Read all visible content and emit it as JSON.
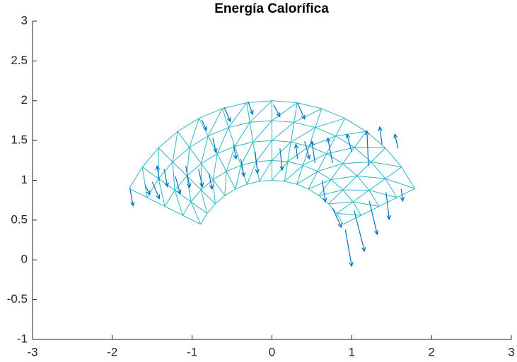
{
  "chart_data": {
    "type": "quiver",
    "title": "Energía Calorífica",
    "xlim": [
      -3,
      3
    ],
    "xticks": [
      -3,
      -2,
      -1,
      0,
      1,
      2,
      3
    ],
    "ylim": [
      -1,
      3
    ],
    "yticks": [
      -1,
      -0.5,
      0,
      0.5,
      1,
      1.5,
      2,
      2.5,
      3
    ],
    "mesh": {
      "color": "#2bb7c7",
      "radii": [
        1,
        1.25,
        1.5,
        1.75,
        2
      ],
      "angles": [
        153.4,
        144.3,
        135.3,
        126.2,
        117.2,
        108.1,
        99.1,
        90,
        80.9,
        71.9,
        62.8,
        53.8,
        44.7,
        35.7,
        26.6
      ]
    },
    "arrows": {
      "color": "#0072bd",
      "x": [
        -1.78,
        -1.59,
        -1.5,
        -1.35,
        -1.21,
        -1.08,
        -0.92,
        -0.79,
        -0.88,
        -0.6,
        -0.3,
        0.02,
        0.32,
        -0.74,
        -0.48,
        -0.21,
        0.1,
        0.32,
        0.54,
        0.76,
        1.0,
        1.21,
        1.38,
        1.58,
        1.62,
        1.43,
        1.22,
        1.03,
        0.92,
        0.76,
        0.63,
        0.41,
        -1.41,
        -0.39
      ],
      "y": [
        0.9,
        0.94,
        0.98,
        1.14,
        1.05,
        1.18,
        1.14,
        1.09,
        1.76,
        1.92,
        1.99,
        1.95,
        1.97,
        1.53,
        1.45,
        1.36,
        1.4,
        1.27,
        1.22,
        1.22,
        1.36,
        1.18,
        1.45,
        1.4,
        0.89,
        0.85,
        0.74,
        0.62,
        0.38,
        0.65,
        1.0,
        1.49,
        1.0,
        1.27
      ],
      "u": [
        0.04,
        0.06,
        0.09,
        0.04,
        0.06,
        0.05,
        0.05,
        0.04,
        0.06,
        0.08,
        0.06,
        0.08,
        0.09,
        0.04,
        0.03,
        0.03,
        0.03,
        -0.02,
        -0.04,
        -0.06,
        -0.06,
        -0.02,
        -0.03,
        -0.04,
        0.02,
        0.04,
        0.1,
        0.13,
        0.08,
        0.11,
        0.04,
        0.06,
        -0.03,
        0.04
      ],
      "v": [
        -0.22,
        -0.12,
        -0.21,
        -0.22,
        -0.22,
        -0.27,
        -0.22,
        -0.2,
        -0.13,
        -0.18,
        -0.16,
        -0.15,
        -0.2,
        -0.18,
        -0.18,
        -0.27,
        -0.27,
        0.18,
        0.27,
        0.31,
        0.22,
        0.44,
        0.22,
        0.18,
        -0.15,
        -0.34,
        -0.42,
        -0.51,
        -0.46,
        -0.24,
        -0.27,
        -0.22,
        0.18,
        -0.22
      ]
    }
  }
}
